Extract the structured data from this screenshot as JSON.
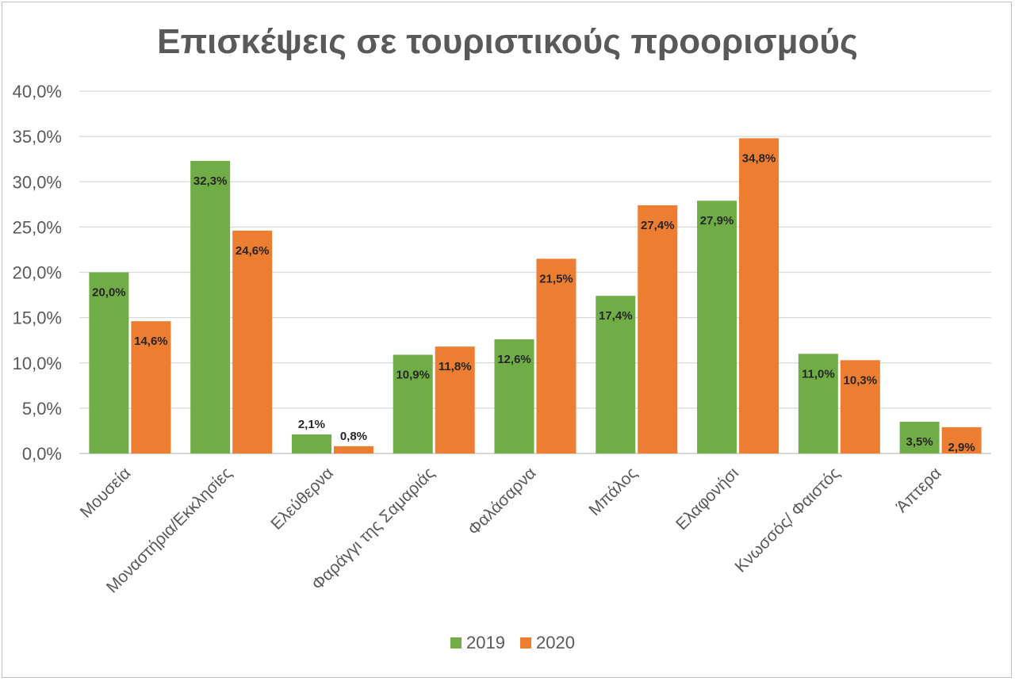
{
  "chart_data": {
    "type": "bar",
    "title": "Επισκέψεις σε τουριστικούς προορισμούς",
    "categories": [
      "Μουσεία",
      "Μοναστήρια/Εκκλησίες",
      "Ελεύθερνα",
      "Φαράγγι της Σαμαριάς",
      "Φαλάσαρνα",
      "Μπάλος",
      "Ελαφονήσι",
      "Κνωσσός/ Φαιστός",
      "Άπτερα"
    ],
    "series": [
      {
        "name": "2019",
        "color": "#70ad47",
        "values": [
          20.0,
          32.3,
          2.1,
          10.9,
          12.6,
          17.4,
          27.9,
          11.0,
          3.5
        ],
        "labels": [
          "20,0%",
          "32,3%",
          "2,1%",
          "10,9%",
          "12,6%",
          "17,4%",
          "27,9%",
          "11,0%",
          "3,5%"
        ]
      },
      {
        "name": "2020",
        "color": "#ed7d31",
        "values": [
          14.6,
          24.6,
          0.8,
          11.8,
          21.5,
          27.4,
          34.8,
          10.3,
          2.9
        ],
        "labels": [
          "14,6%",
          "24,6%",
          "0,8%",
          "11,8%",
          "21,5%",
          "27,4%",
          "34,8%",
          "10,3%",
          "2,9%"
        ]
      }
    ],
    "ylim": [
      0,
      40
    ],
    "yticks": [
      0,
      5,
      10,
      15,
      20,
      25,
      30,
      35,
      40
    ],
    "ytick_labels": [
      "0,0%",
      "5,0%",
      "10,0%",
      "15,0%",
      "20,0%",
      "25,0%",
      "30,0%",
      "35,0%",
      "40,0%"
    ],
    "xlabel": "",
    "ylabel": "",
    "grid": true,
    "legend": "bottom"
  }
}
